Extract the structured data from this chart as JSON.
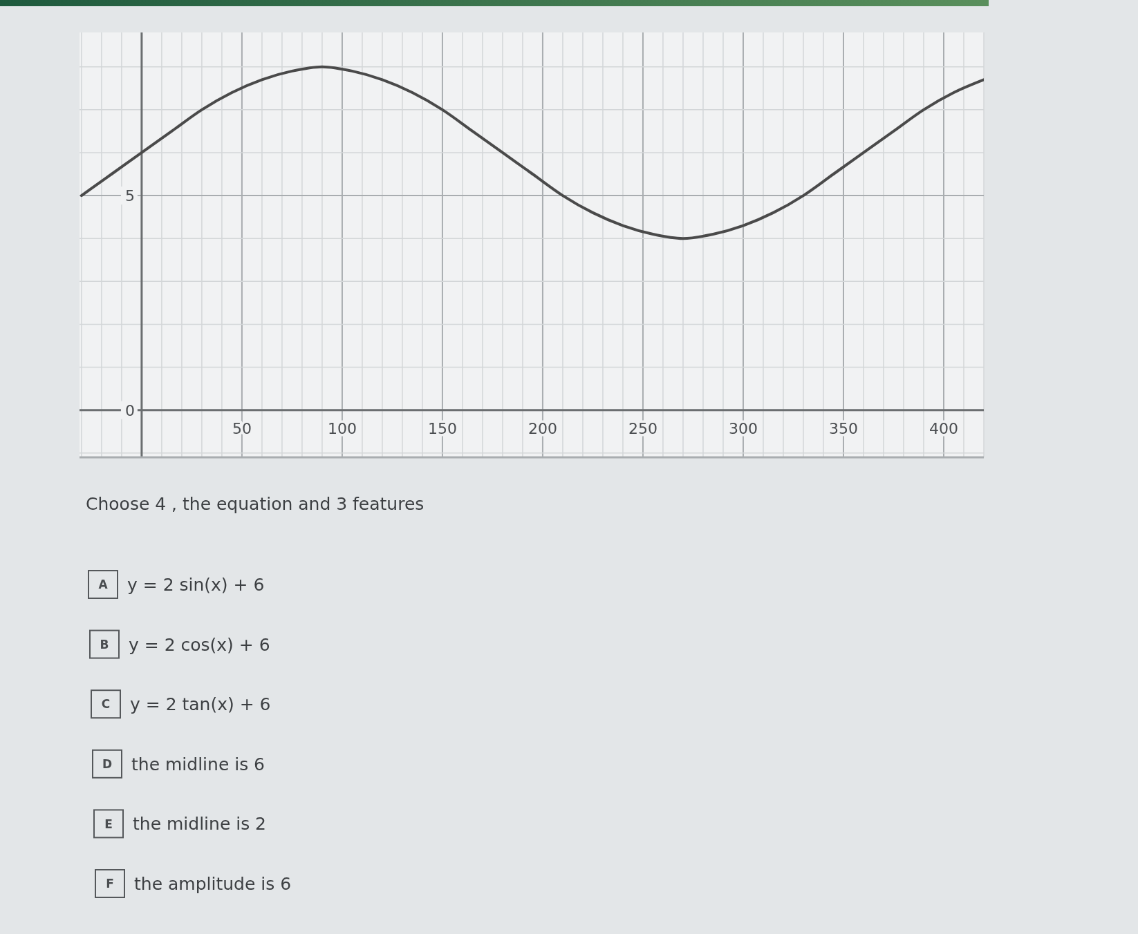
{
  "chart_data": {
    "type": "line",
    "annotations": [
      "Choose 4 , the equation and 3 features",
      "A",
      "y = 2 sin(x) + 6",
      "B",
      "y = 2 cos(x) + 6",
      "C",
      "y = 2 tan(x) + 6",
      "D",
      "the midline is 6",
      "E",
      "the midline is 2",
      "F",
      "the amplitude is 6"
    ],
    "x": [
      -30,
      -15,
      0,
      15,
      30,
      45,
      60,
      75,
      90,
      105,
      120,
      135,
      150,
      165,
      180,
      195,
      210,
      225,
      240,
      255,
      270,
      285,
      300,
      315,
      330,
      345,
      360,
      375,
      390,
      405,
      420
    ],
    "series": [
      {
        "color": "#4a4a4a",
        "values": [
          5.0,
          5.5,
          6.0,
          6.5,
          7.0,
          7.4,
          7.7,
          7.9,
          8.0,
          7.9,
          7.7,
          7.4,
          7.0,
          6.5,
          6.0,
          5.5,
          5.0,
          4.6,
          4.3,
          4.1,
          4.0,
          4.1,
          4.3,
          4.6,
          5.0,
          5.5,
          6.0,
          6.5,
          7.0,
          7.4,
          7.7
        ]
      }
    ],
    "xlim": [
      -31,
      420
    ],
    "ylim": [
      -1.1,
      8.8
    ],
    "xticks": [
      {
        "value": -30,
        "label": null
      },
      {
        "value": -20,
        "label": null
      },
      {
        "value": -10,
        "label": null
      },
      {
        "value": 0,
        "label": null
      },
      {
        "value": 10,
        "label": null
      },
      {
        "value": 20,
        "label": null
      },
      {
        "value": 30,
        "label": null
      },
      {
        "value": 40,
        "label": null
      },
      50,
      {
        "value": 60,
        "label": null
      },
      {
        "value": 70,
        "label": null
      },
      {
        "value": 80,
        "label": null
      },
      {
        "value": 90,
        "label": null
      },
      100,
      {
        "value": 110,
        "label": null
      },
      {
        "value": 120,
        "label": null
      },
      {
        "value": 130,
        "label": null
      },
      {
        "value": 140,
        "label": null
      },
      150,
      {
        "value": 160,
        "label": null
      },
      {
        "value": 170,
        "label": null
      },
      {
        "value": 180,
        "label": null
      },
      {
        "value": 190,
        "label": null
      },
      200,
      {
        "value": 210,
        "label": null
      },
      {
        "value": 220,
        "label": null
      },
      {
        "value": 230,
        "label": null
      },
      {
        "value": 240,
        "label": null
      },
      250,
      {
        "value": 260,
        "label": null
      },
      {
        "value": 270,
        "label": null
      },
      {
        "value": 280,
        "label": null
      },
      {
        "value": 290,
        "label": null
      },
      300,
      {
        "value": 310,
        "label": null
      },
      {
        "value": 320,
        "label": null
      },
      {
        "value": 330,
        "label": null
      },
      {
        "value": 340,
        "label": null
      },
      350,
      {
        "value": 360,
        "label": null
      },
      {
        "value": 370,
        "label": null
      },
      {
        "value": 380,
        "label": null
      },
      {
        "value": 390,
        "label": null
      },
      400,
      {
        "value": 410,
        "label": null
      },
      {
        "value": 420,
        "label": null
      }
    ],
    "yticks": [
      {
        "value": -1,
        "label": null
      },
      0,
      {
        "value": 1,
        "label": null
      },
      {
        "value": 2,
        "label": null
      },
      {
        "value": 3,
        "label": null
      },
      {
        "value": 4,
        "label": null
      },
      5,
      {
        "value": 6,
        "label": null
      },
      {
        "value": 7,
        "label": null
      },
      {
        "value": 8,
        "label": null
      }
    ],
    "grid": true
  }
}
